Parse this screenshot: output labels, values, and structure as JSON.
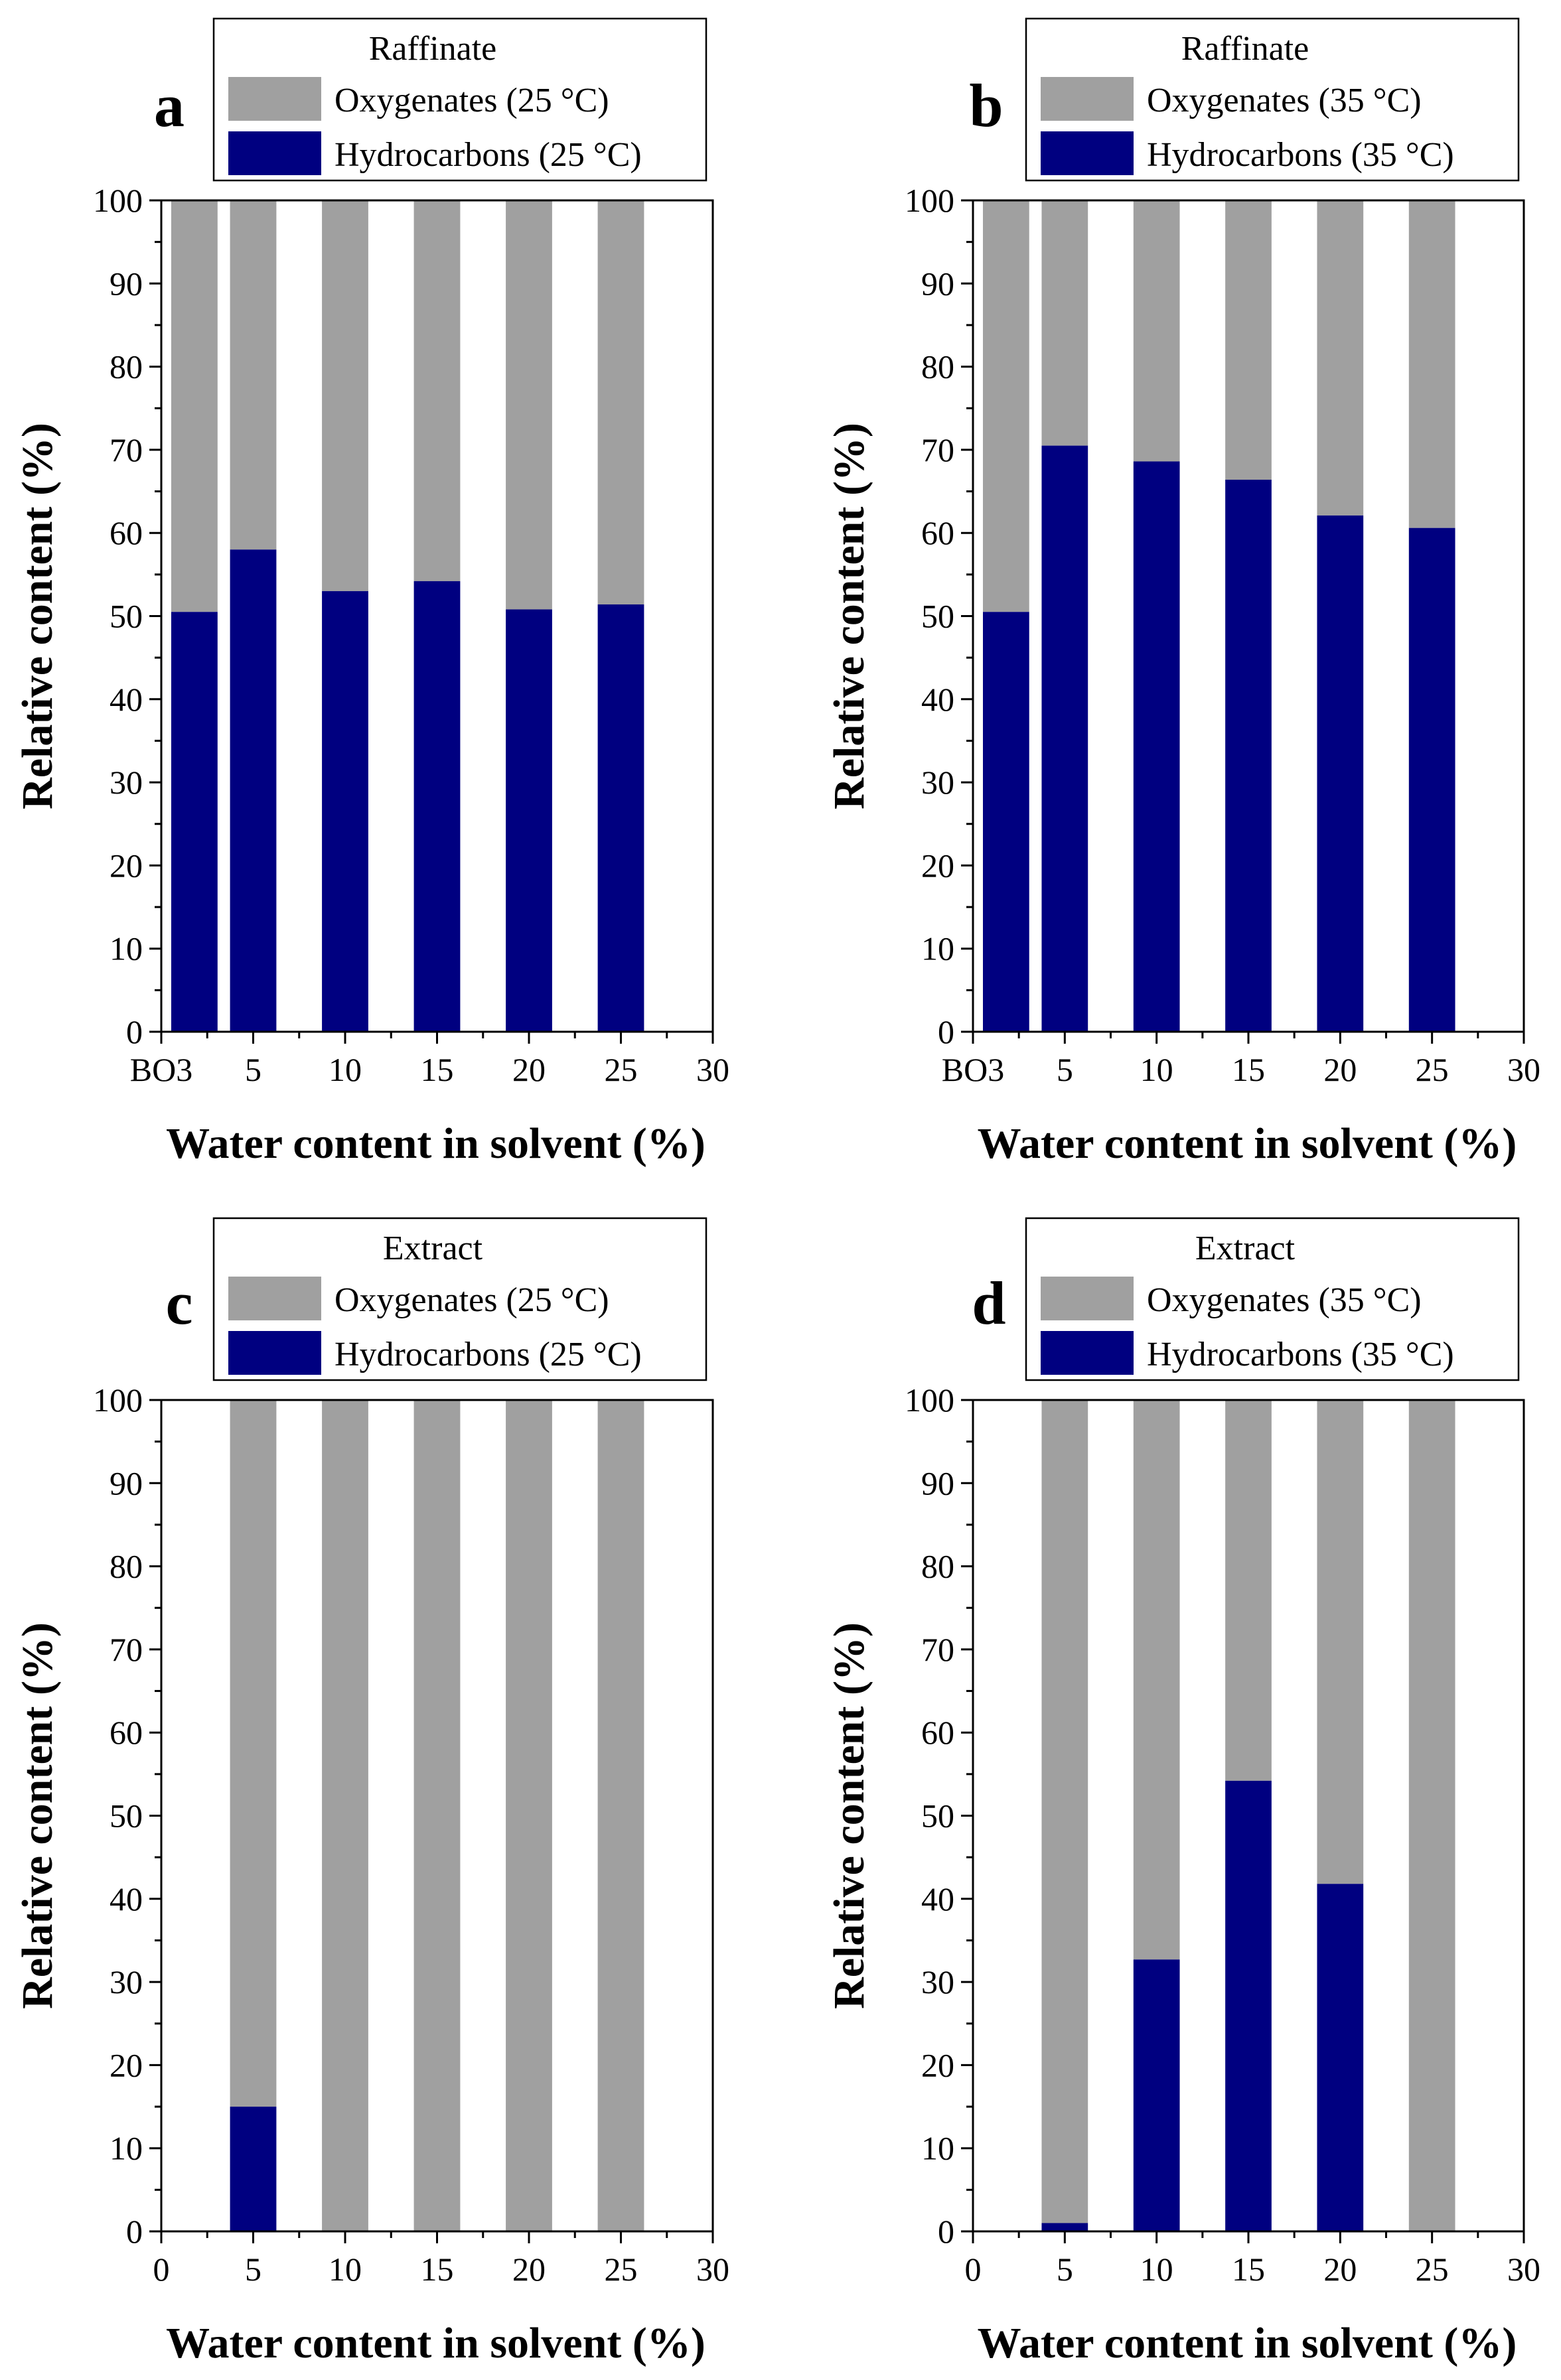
{
  "colors": {
    "oxygenates": "#a0a0a0",
    "hydrocarbons": "#000080",
    "axis": "#000000",
    "background": "#ffffff"
  },
  "chart_data": [
    {
      "type": "bar",
      "stacked": true,
      "panel_letter": "a",
      "legend_title": "Raffinate",
      "series": [
        {
          "name": "Oxygenates (25 °C)",
          "key": "oxygenates"
        },
        {
          "name": "Hydrocarbons (25 °C)",
          "key": "hydrocarbons"
        }
      ],
      "x": [
        0,
        5,
        10,
        15,
        20,
        25
      ],
      "hydrocarbons": [
        50.5,
        58.0,
        53.0,
        54.2,
        50.8,
        51.4
      ],
      "total": [
        100,
        100,
        100,
        100,
        100,
        100
      ],
      "xticks": [
        0,
        5,
        10,
        15,
        20,
        25,
        30
      ],
      "xtick_labels": [
        "BO3",
        "5",
        "10",
        "15",
        "20",
        "25",
        "30"
      ],
      "yticks": [
        0,
        10,
        20,
        30,
        40,
        50,
        60,
        70,
        80,
        90,
        100
      ],
      "xlim": [
        0,
        30
      ],
      "ylim": [
        0,
        100
      ],
      "xlabel": "Water content in solvent (%)",
      "ylabel": "Relative content (%)"
    },
    {
      "type": "bar",
      "stacked": true,
      "panel_letter": "b",
      "legend_title": "Raffinate",
      "series": [
        {
          "name": "Oxygenates (35 °C)",
          "key": "oxygenates"
        },
        {
          "name": "Hydrocarbons (35 °C)",
          "key": "hydrocarbons"
        }
      ],
      "x": [
        0,
        5,
        10,
        15,
        20,
        25
      ],
      "hydrocarbons": [
        50.5,
        70.5,
        68.6,
        66.4,
        62.1,
        60.6
      ],
      "total": [
        100,
        100,
        100,
        100,
        100,
        100
      ],
      "xticks": [
        0,
        5,
        10,
        15,
        20,
        25,
        30
      ],
      "xtick_labels": [
        "BO3",
        "5",
        "10",
        "15",
        "20",
        "25",
        "30"
      ],
      "yticks": [
        0,
        10,
        20,
        30,
        40,
        50,
        60,
        70,
        80,
        90,
        100
      ],
      "xlim": [
        0,
        30
      ],
      "ylim": [
        0,
        100
      ],
      "xlabel": "Water content in solvent (%)",
      "ylabel": "Relative content (%)"
    },
    {
      "type": "bar",
      "stacked": true,
      "panel_letter": "c",
      "legend_title": "Extract",
      "series": [
        {
          "name": "Oxygenates (25 °C)",
          "key": "oxygenates"
        },
        {
          "name": "Hydrocarbons (25 °C)",
          "key": "hydrocarbons"
        }
      ],
      "x": [
        5,
        10,
        15,
        20,
        25
      ],
      "hydrocarbons": [
        15.0,
        0,
        0,
        0,
        0
      ],
      "total": [
        100,
        100,
        100,
        100,
        100
      ],
      "xticks": [
        0,
        5,
        10,
        15,
        20,
        25,
        30
      ],
      "xtick_labels": [
        "0",
        "5",
        "10",
        "15",
        "20",
        "25",
        "30"
      ],
      "yticks": [
        0,
        10,
        20,
        30,
        40,
        50,
        60,
        70,
        80,
        90,
        100
      ],
      "xlim": [
        0,
        30
      ],
      "ylim": [
        0,
        100
      ],
      "xlabel": "Water content in solvent (%)",
      "ylabel": "Relative content (%)"
    },
    {
      "type": "bar",
      "stacked": true,
      "panel_letter": "d",
      "legend_title": "Extract",
      "series": [
        {
          "name": "Oxygenates (35 °C)",
          "key": "oxygenates"
        },
        {
          "name": "Hydrocarbons (35 °C)",
          "key": "hydrocarbons"
        }
      ],
      "x": [
        5,
        10,
        15,
        20,
        25
      ],
      "hydrocarbons": [
        1.0,
        32.7,
        54.2,
        41.8,
        0
      ],
      "total": [
        100,
        100,
        100,
        100,
        100
      ],
      "xticks": [
        0,
        5,
        10,
        15,
        20,
        25,
        30
      ],
      "xtick_labels": [
        "0",
        "5",
        "10",
        "15",
        "20",
        "25",
        "30"
      ],
      "yticks": [
        0,
        10,
        20,
        30,
        40,
        50,
        60,
        70,
        80,
        90,
        100
      ],
      "xlim": [
        0,
        30
      ],
      "ylim": [
        0,
        100
      ],
      "xlabel": "Water content in solvent (%)",
      "ylabel": "Relative content (%)"
    }
  ]
}
